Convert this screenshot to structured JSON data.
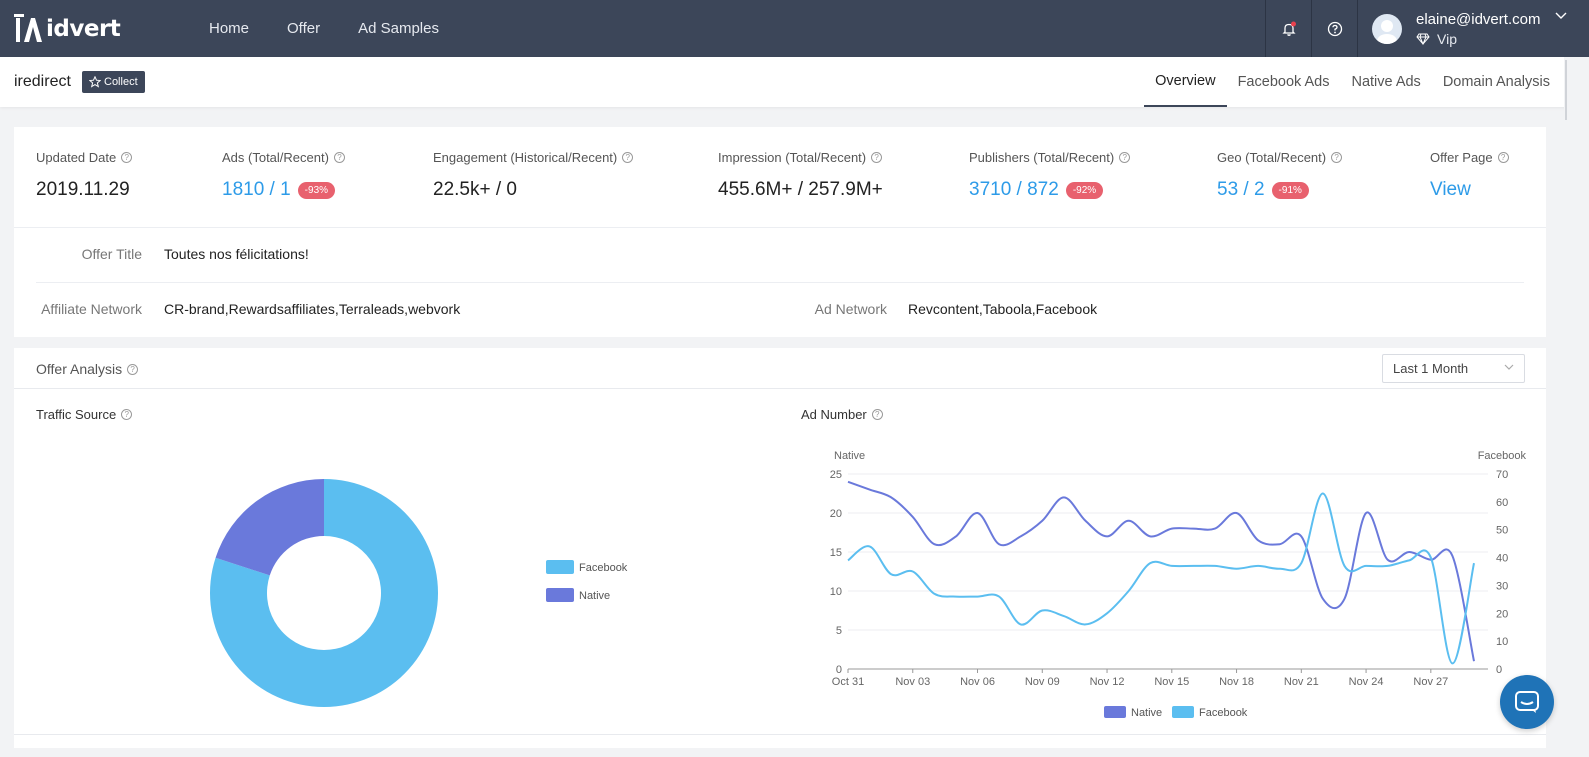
{
  "app": {
    "logo_text": "idvert"
  },
  "nav": {
    "items": [
      "Home",
      "Offer",
      "Ad Samples"
    ]
  },
  "user": {
    "email": "elaine@idvert.com",
    "level": "Vip"
  },
  "offer": {
    "name": "iredirect",
    "collect_label": "Collect",
    "tabs": [
      "Overview",
      "Facebook Ads",
      "Native Ads",
      "Domain Analysis"
    ],
    "active_tab": "Overview"
  },
  "stats": {
    "updated": {
      "label": "Updated Date",
      "value": "2019.11.29"
    },
    "ads": {
      "label": "Ads (Total/Recent)",
      "value": "1810 / 1",
      "badge": "-93%"
    },
    "engagement": {
      "label": "Engagement (Historical/Recent)",
      "value": "22.5k+ / 0"
    },
    "impression": {
      "label": "Impression (Total/Recent)",
      "value": "455.6M+ / 257.9M+"
    },
    "publishers": {
      "label": "Publishers (Total/Recent)",
      "value": "3710 / 872",
      "badge": "-92%"
    },
    "geo": {
      "label": "Geo (Total/Recent)",
      "value": "53 / 2",
      "badge": "-91%"
    },
    "offer_page": {
      "label": "Offer Page",
      "value": "View"
    }
  },
  "details": {
    "offer_title": {
      "label": "Offer Title",
      "value": "Toutes nos félicitations!"
    },
    "affiliate_network": {
      "label": "Affiliate Network",
      "value": "CR-brand,Rewardsaffiliates,Terraleads,webvork"
    },
    "ad_network": {
      "label": "Ad Network",
      "value": "Revcontent,Taboola,Facebook"
    }
  },
  "analysis": {
    "title": "Offer Analysis",
    "range": "Last 1 Month",
    "traffic_title": "Traffic Source",
    "adnumber_title": "Ad Number"
  },
  "colors": {
    "facebook": "#5bbef0",
    "native": "#6a79db",
    "nav_bg": "#3c4659",
    "link": "#2d9be8",
    "badge": "#e8616e"
  },
  "chart_data": [
    {
      "type": "pie",
      "title": "Traffic Source",
      "labels": [
        "Facebook",
        "Native"
      ],
      "values": [
        80,
        20
      ],
      "legend": "right"
    },
    {
      "type": "line",
      "title": "Ad Number",
      "left_axis_label": "Native",
      "right_axis_label": "Facebook",
      "left_ylim": [
        0,
        25
      ],
      "right_ylim": [
        0,
        70
      ],
      "left_ticks": [
        0,
        5,
        10,
        15,
        20,
        25
      ],
      "right_ticks": [
        0,
        10,
        20,
        30,
        40,
        50,
        60,
        70
      ],
      "x": [
        "Oct 31",
        "Nov 01",
        "Nov 02",
        "Nov 03",
        "Nov 04",
        "Nov 05",
        "Nov 06",
        "Nov 07",
        "Nov 08",
        "Nov 09",
        "Nov 10",
        "Nov 11",
        "Nov 12",
        "Nov 13",
        "Nov 14",
        "Nov 15",
        "Nov 16",
        "Nov 17",
        "Nov 18",
        "Nov 19",
        "Nov 20",
        "Nov 21",
        "Nov 22",
        "Nov 23",
        "Nov 24",
        "Nov 25",
        "Nov 26",
        "Nov 27",
        "Nov 28",
        "Nov 29"
      ],
      "x_tick_labels": [
        "Oct 31",
        "Nov 03",
        "Nov 06",
        "Nov 09",
        "Nov 12",
        "Nov 15",
        "Nov 18",
        "Nov 21",
        "Nov 24",
        "Nov 27"
      ],
      "series": [
        {
          "name": "Native",
          "axis": "left",
          "values": [
            24,
            23,
            22,
            19.5,
            16,
            17,
            20,
            16,
            17,
            19,
            22,
            19,
            17,
            19,
            17,
            18,
            18,
            18,
            20,
            16.5,
            16,
            17,
            9,
            9,
            20,
            14,
            15,
            14,
            14.5,
            1
          ]
        },
        {
          "name": "Facebook",
          "axis": "right",
          "values": [
            39,
            44,
            34,
            35,
            27,
            26,
            26,
            26,
            16,
            21,
            19,
            16,
            20,
            28,
            38,
            37,
            37,
            37,
            36,
            37,
            36,
            38,
            63,
            37,
            37,
            37,
            39,
            40,
            2,
            38
          ]
        }
      ],
      "legend": "bottom",
      "grid": true
    }
  ]
}
